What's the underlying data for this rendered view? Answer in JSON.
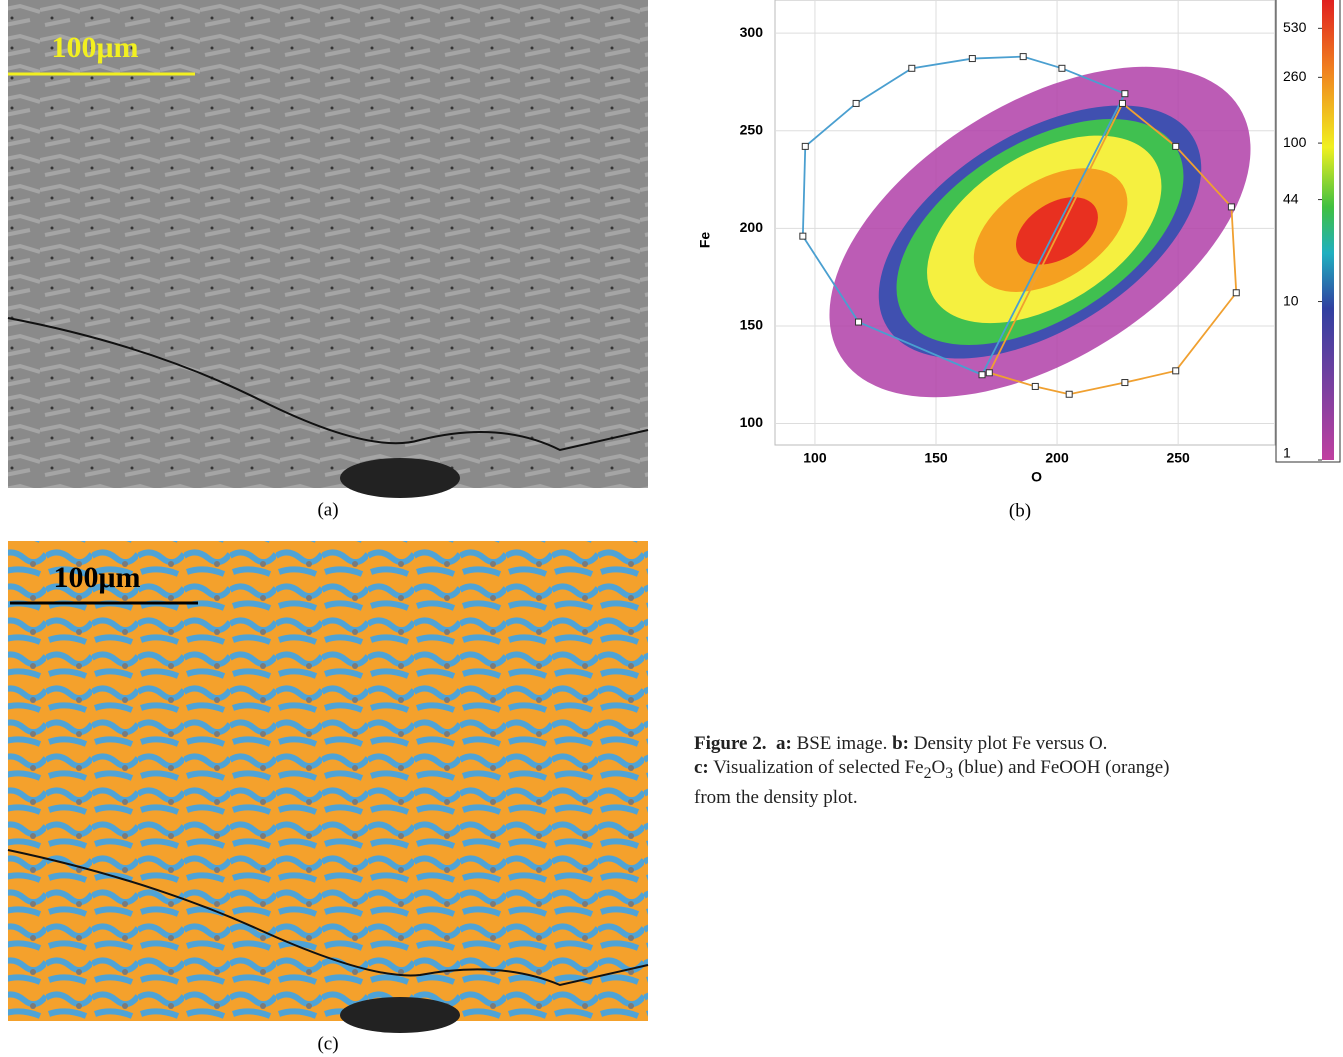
{
  "panel_a": {
    "scale_label": "100μm",
    "caption": "(a)"
  },
  "panel_c": {
    "scale_label": "100μm",
    "caption": "(c)"
  },
  "chart_data": {
    "type": "density",
    "caption": "(b)",
    "xlabel": "O",
    "ylabel": "Fe",
    "xlim": [
      83.5,
      290
    ],
    "ylim": [
      89,
      317
    ],
    "xticks": [
      100,
      150,
      200,
      250
    ],
    "yticks": [
      100,
      150,
      200,
      250,
      300
    ],
    "grid": true,
    "colorbar": {
      "scale": "log",
      "lim": [
        1,
        800
      ],
      "ticks": [
        1,
        10,
        44,
        100,
        260,
        530
      ]
    },
    "series": [
      {
        "color": "#4a9fd0",
        "x": [
          169,
          118,
          95,
          96,
          117,
          140,
          165,
          186,
          202,
          228
        ],
        "y": [
          125,
          152,
          196,
          242,
          264,
          282,
          287,
          288,
          282,
          269
        ]
      },
      {
        "color": "#f0a030",
        "x": [
          227,
          249,
          272,
          274,
          249,
          228,
          205,
          191,
          172
        ],
        "y": [
          264,
          242,
          211,
          167,
          127,
          121,
          115,
          119,
          126
        ]
      }
    ]
  },
  "figure_caption": {
    "label": "Figure 2.",
    "a_key": "a:",
    "a_text": "BSE image.",
    "b_key": "b:",
    "b_text": "Density plot Fe versus O.",
    "c_key": "c:",
    "c_text_1": "Visualization of selected Fe",
    "sub_1": "2",
    "c_text_2": "O",
    "sub_2": "3",
    "c_text_3": "(blue) and FeOOH (orange)",
    "c_text_4": "from the density plot."
  }
}
